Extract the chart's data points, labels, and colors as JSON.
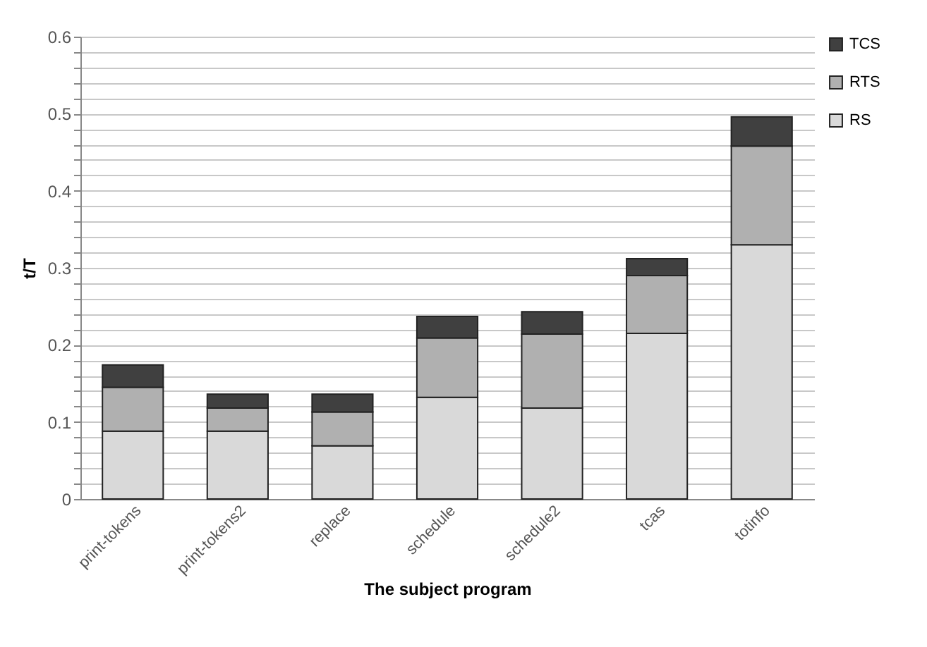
{
  "chart_data": {
    "type": "bar",
    "stacked": true,
    "xlabel": "The subject program",
    "ylabel": "t/T",
    "categories": [
      "print-tokens",
      "print-tokens2",
      "replace",
      "schedule",
      "schedule2",
      "tcas",
      "totinfo"
    ],
    "series": [
      {
        "name": "RS",
        "color": "#d9d9d9",
        "values": [
          0.088,
          0.088,
          0.069,
          0.132,
          0.118,
          0.215,
          0.33
        ]
      },
      {
        "name": "RTS",
        "color": "#b0b0b0",
        "values": [
          0.057,
          0.03,
          0.044,
          0.077,
          0.096,
          0.075,
          0.128
        ]
      },
      {
        "name": "TCS",
        "color": "#404040",
        "values": [
          0.029,
          0.018,
          0.023,
          0.028,
          0.029,
          0.022,
          0.038
        ]
      }
    ],
    "ylim": [
      0,
      0.6
    ],
    "yticks": [
      0,
      {
        "value": 0.02,
        "label": null
      },
      {
        "value": 0.04,
        "label": null
      },
      {
        "value": 0.06,
        "label": null
      },
      {
        "value": 0.08,
        "label": null
      },
      0.1,
      {
        "value": 0.12,
        "label": null
      },
      {
        "value": 0.14,
        "label": null
      },
      {
        "value": 0.16,
        "label": null
      },
      {
        "value": 0.18,
        "label": null
      },
      0.2,
      {
        "value": 0.22,
        "label": null
      },
      {
        "value": 0.24,
        "label": null
      },
      {
        "value": 0.26,
        "label": null
      },
      {
        "value": 0.28,
        "label": null
      },
      0.3,
      {
        "value": 0.32,
        "label": null
      },
      {
        "value": 0.34,
        "label": null
      },
      {
        "value": 0.36,
        "label": null
      },
      {
        "value": 0.38,
        "label": null
      },
      0.4,
      {
        "value": 0.42,
        "label": null
      },
      {
        "value": 0.44,
        "label": null
      },
      {
        "value": 0.46,
        "label": null
      },
      {
        "value": 0.48,
        "label": null
      },
      0.5,
      {
        "value": 0.52,
        "label": null
      },
      {
        "value": 0.54,
        "label": null
      },
      {
        "value": 0.56,
        "label": null
      },
      {
        "value": 0.58,
        "label": null
      },
      0.6
    ],
    "grid": "y",
    "legend": "right"
  }
}
